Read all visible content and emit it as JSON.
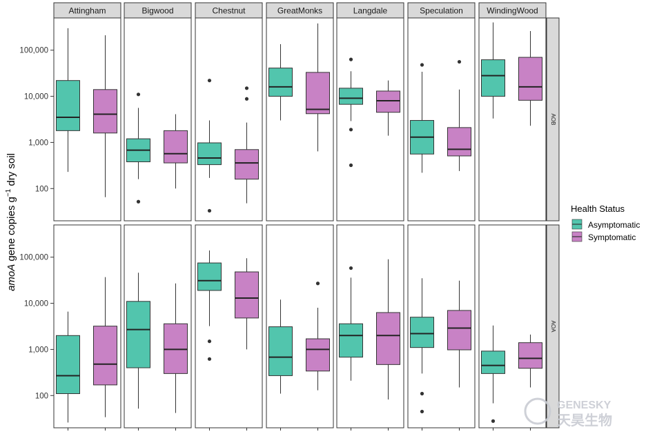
{
  "chart_data": {
    "type": "box",
    "ylabel_prefix": "amoA",
    "ylabel_rest": " gene copies g",
    "ylabel_sup": "−1",
    "ylabel_suffix": " dry soil",
    "yscale": "log10",
    "ylim": [
      20,
      500000
    ],
    "yticks": [
      {
        "value": 100,
        "label": "100"
      },
      {
        "value": 1000,
        "label": "1,000"
      },
      {
        "value": 10000,
        "label": "10,000"
      },
      {
        "value": 100000,
        "label": "100,000"
      }
    ],
    "columns": [
      "Attingham",
      "Bigwood",
      "Chestnut",
      "GreatMonks",
      "Langdale",
      "Speculation",
      "WindingWood"
    ],
    "rows": [
      "AOB",
      "AOA"
    ],
    "groups": [
      "Asymptomatic",
      "Symptomatic"
    ],
    "colors": {
      "Asymptomatic": "#52c5ad",
      "Symptomatic": "#c882c5"
    },
    "legend": {
      "title": "Health Status",
      "position": "right"
    },
    "boxes": {
      "AOB": {
        "Attingham": [
          {
            "group": "Asymptomatic",
            "min": 230,
            "q1": 1800,
            "median": 3500,
            "q3": 22000,
            "max": 300000,
            "outliers": []
          },
          {
            "group": "Symptomatic",
            "min": 65,
            "q1": 1600,
            "median": 4100,
            "q3": 14000,
            "max": 210000,
            "outliers": []
          }
        ],
        "Bigwood": [
          {
            "group": "Asymptomatic",
            "min": 160,
            "q1": 380,
            "median": 680,
            "q3": 1200,
            "max": 5600,
            "outliers": [
              52,
              11000
            ]
          },
          {
            "group": "Symptomatic",
            "min": 100,
            "q1": 360,
            "median": 570,
            "q3": 1800,
            "max": 4100,
            "outliers": []
          }
        ],
        "Chestnut": [
          {
            "group": "Asymptomatic",
            "min": 170,
            "q1": 330,
            "median": 460,
            "q3": 980,
            "max": 3000,
            "outliers": [
              33,
              22000
            ]
          },
          {
            "group": "Symptomatic",
            "min": 48,
            "q1": 160,
            "median": 360,
            "q3": 700,
            "max": 2700,
            "outliers": [
              8800,
              15000
            ]
          }
        ],
        "GreatMonks": [
          {
            "group": "Asymptomatic",
            "min": 3000,
            "q1": 10000,
            "median": 16000,
            "q3": 41000,
            "max": 135000,
            "outliers": []
          },
          {
            "group": "Symptomatic",
            "min": 640,
            "q1": 4200,
            "median": 5200,
            "q3": 33000,
            "max": 380000,
            "outliers": []
          }
        ],
        "Langdale": [
          {
            "group": "Asymptomatic",
            "min": 2900,
            "q1": 6700,
            "median": 9100,
            "q3": 15000,
            "max": 35000,
            "outliers": [
              320,
              1900,
              63000
            ]
          },
          {
            "group": "Symptomatic",
            "min": 1400,
            "q1": 4500,
            "median": 8000,
            "q3": 13000,
            "max": 22000,
            "outliers": []
          }
        ],
        "Speculation": [
          {
            "group": "Asymptomatic",
            "min": 220,
            "q1": 560,
            "median": 1300,
            "q3": 3000,
            "max": 34000,
            "outliers": [
              48000
            ]
          },
          {
            "group": "Symptomatic",
            "min": 240,
            "q1": 510,
            "median": 710,
            "q3": 2100,
            "max": 14000,
            "outliers": [
              56000
            ]
          }
        ],
        "WindingWood": [
          {
            "group": "Asymptomatic",
            "min": 3300,
            "q1": 10000,
            "median": 28000,
            "q3": 62000,
            "max": 400000,
            "outliers": []
          },
          {
            "group": "Symptomatic",
            "min": 2300,
            "q1": 8200,
            "median": 16000,
            "q3": 70000,
            "max": 260000,
            "outliers": []
          }
        ]
      },
      "AOA": {
        "Attingham": [
          {
            "group": "Asymptomatic",
            "min": 26,
            "q1": 110,
            "median": 270,
            "q3": 2000,
            "max": 6600,
            "outliers": []
          },
          {
            "group": "Symptomatic",
            "min": 34,
            "q1": 170,
            "median": 480,
            "q3": 3200,
            "max": 37000,
            "outliers": []
          }
        ],
        "Bigwood": [
          {
            "group": "Asymptomatic",
            "min": 52,
            "q1": 400,
            "median": 2700,
            "q3": 11000,
            "max": 46000,
            "outliers": []
          },
          {
            "group": "Symptomatic",
            "min": 42,
            "q1": 300,
            "median": 1000,
            "q3": 3600,
            "max": 27000,
            "outliers": []
          }
        ],
        "Chestnut": [
          {
            "group": "Asymptomatic",
            "min": 3200,
            "q1": 19000,
            "median": 31000,
            "q3": 75000,
            "max": 140000,
            "outliers": [
              620,
              1500
            ]
          },
          {
            "group": "Symptomatic",
            "min": 1000,
            "q1": 4800,
            "median": 13000,
            "q3": 48000,
            "max": 95000,
            "outliers": []
          }
        ],
        "GreatMonks": [
          {
            "group": "Asymptomatic",
            "min": 110,
            "q1": 270,
            "median": 680,
            "q3": 3100,
            "max": 12000,
            "outliers": []
          },
          {
            "group": "Symptomatic",
            "min": 130,
            "q1": 340,
            "median": 1000,
            "q3": 1700,
            "max": 8000,
            "outliers": [
              27000
            ]
          }
        ],
        "Langdale": [
          {
            "group": "Asymptomatic",
            "min": 210,
            "q1": 680,
            "median": 2000,
            "q3": 3600,
            "max": 36000,
            "outliers": [
              58000
            ]
          },
          {
            "group": "Symptomatic",
            "min": 82,
            "q1": 470,
            "median": 2000,
            "q3": 6300,
            "max": 90000,
            "outliers": []
          }
        ],
        "Speculation": [
          {
            "group": "Asymptomatic",
            "min": 300,
            "q1": 1100,
            "median": 2200,
            "q3": 5000,
            "max": 35000,
            "outliers": [
              45,
              110
            ]
          },
          {
            "group": "Symptomatic",
            "min": 150,
            "q1": 980,
            "median": 2900,
            "q3": 7000,
            "max": 31000,
            "outliers": []
          }
        ],
        "WindingWood": [
          {
            "group": "Asymptomatic",
            "min": 68,
            "q1": 300,
            "median": 450,
            "q3": 920,
            "max": 3300,
            "outliers": [
              28
            ]
          },
          {
            "group": "Symptomatic",
            "min": 150,
            "q1": 390,
            "median": 640,
            "q3": 1400,
            "max": 2100,
            "outliers": []
          }
        ]
      }
    }
  },
  "watermark": {
    "brand": "GENESKY",
    "brand_cn": "天昊生物"
  }
}
